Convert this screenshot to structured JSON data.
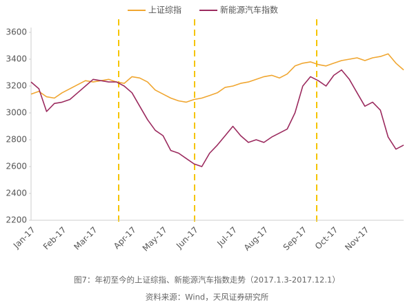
{
  "chart_data": {
    "type": "line",
    "categories": [
      "Jan-17",
      null,
      null,
      null,
      "Feb-17",
      null,
      null,
      null,
      "Mar-17",
      null,
      null,
      null,
      null,
      "Apr-17",
      null,
      null,
      null,
      "May-17",
      null,
      null,
      null,
      "Jun-17",
      null,
      null,
      null,
      null,
      "Jul-17",
      null,
      null,
      null,
      "Aug-17",
      null,
      null,
      null,
      null,
      "Sep-17",
      null,
      null,
      null,
      "Oct-17",
      null,
      null,
      null,
      "Nov-17",
      null,
      null,
      null,
      null,
      null
    ],
    "series": [
      {
        "name": "上证综指",
        "color": "#f0a630",
        "values": [
          3140,
          3160,
          3120,
          3110,
          3150,
          3180,
          3210,
          3240,
          3230,
          3240,
          3250,
          3230,
          3220,
          3270,
          3260,
          3230,
          3170,
          3140,
          3110,
          3090,
          3080,
          3100,
          3110,
          3130,
          3150,
          3190,
          3200,
          3220,
          3230,
          3250,
          3270,
          3280,
          3260,
          3290,
          3350,
          3370,
          3380,
          3360,
          3350,
          3370,
          3390,
          3400,
          3410,
          3390,
          3410,
          3420,
          3440,
          3370,
          3320
        ]
      },
      {
        "name": "新能源汽车指数",
        "color": "#9b2a5e",
        "values": [
          3230,
          3180,
          3010,
          3070,
          3080,
          3100,
          3150,
          3200,
          3250,
          3240,
          3230,
          3230,
          3200,
          3150,
          3050,
          2950,
          2870,
          2830,
          2720,
          2700,
          2660,
          2620,
          2600,
          2700,
          2760,
          2830,
          2900,
          2830,
          2780,
          2800,
          2780,
          2820,
          2850,
          2880,
          3000,
          3200,
          3270,
          3240,
          3200,
          3280,
          3320,
          3250,
          3150,
          3050,
          3080,
          3020,
          2820,
          2730,
          2760
        ]
      }
    ],
    "ylim": [
      2200,
      3600
    ],
    "yticks": [
      2200,
      2400,
      2600,
      2800,
      3000,
      3200,
      3400,
      3600
    ],
    "grid": false,
    "caption": "图7：年初至今的上证综指、新能源汽车指数走势（2017.1.3-2017.12.1）",
    "source": "资料来源：Wind，天风证券研究所"
  }
}
